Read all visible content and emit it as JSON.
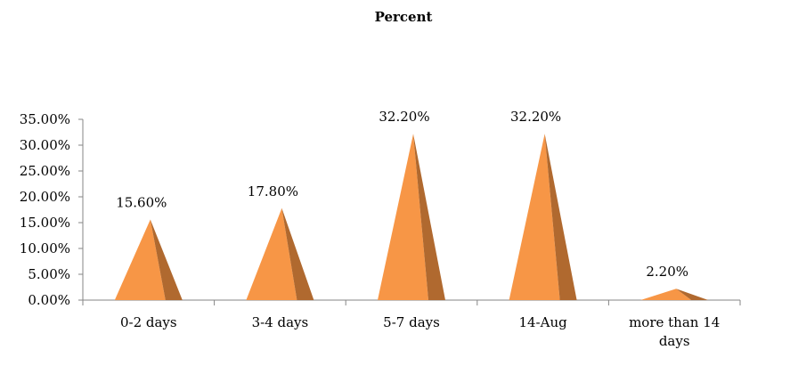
{
  "chart_data": {
    "type": "bar",
    "shape": "pyramid",
    "title": "Percent",
    "categories": [
      "0-2 days",
      "3-4 days",
      "5-7 days",
      "14-Aug",
      "more than 14 days"
    ],
    "category_lines": [
      [
        "0-2 days"
      ],
      [
        "3-4 days"
      ],
      [
        "5-7 days"
      ],
      [
        "14-Aug"
      ],
      [
        "more than 14",
        "days"
      ]
    ],
    "values": [
      0.156,
      0.178,
      0.322,
      0.322,
      0.022
    ],
    "data_labels": [
      "15.60%",
      "17.80%",
      "32.20%",
      "32.20%",
      "2.20%"
    ],
    "ylim": [
      0,
      0.35
    ],
    "yticks": [
      0,
      0.05,
      0.1,
      0.15,
      0.2,
      0.25,
      0.3,
      0.35
    ],
    "ytick_labels": [
      "0.00%",
      "5.00%",
      "10.00%",
      "15.00%",
      "20.00%",
      "25.00%",
      "30.00%",
      "35.00%"
    ],
    "xlabel": "",
    "ylabel": "",
    "grid": false,
    "legend": "none",
    "colors": {
      "face": "#f79646",
      "side": "#b0692f",
      "axis": "#868686"
    }
  }
}
